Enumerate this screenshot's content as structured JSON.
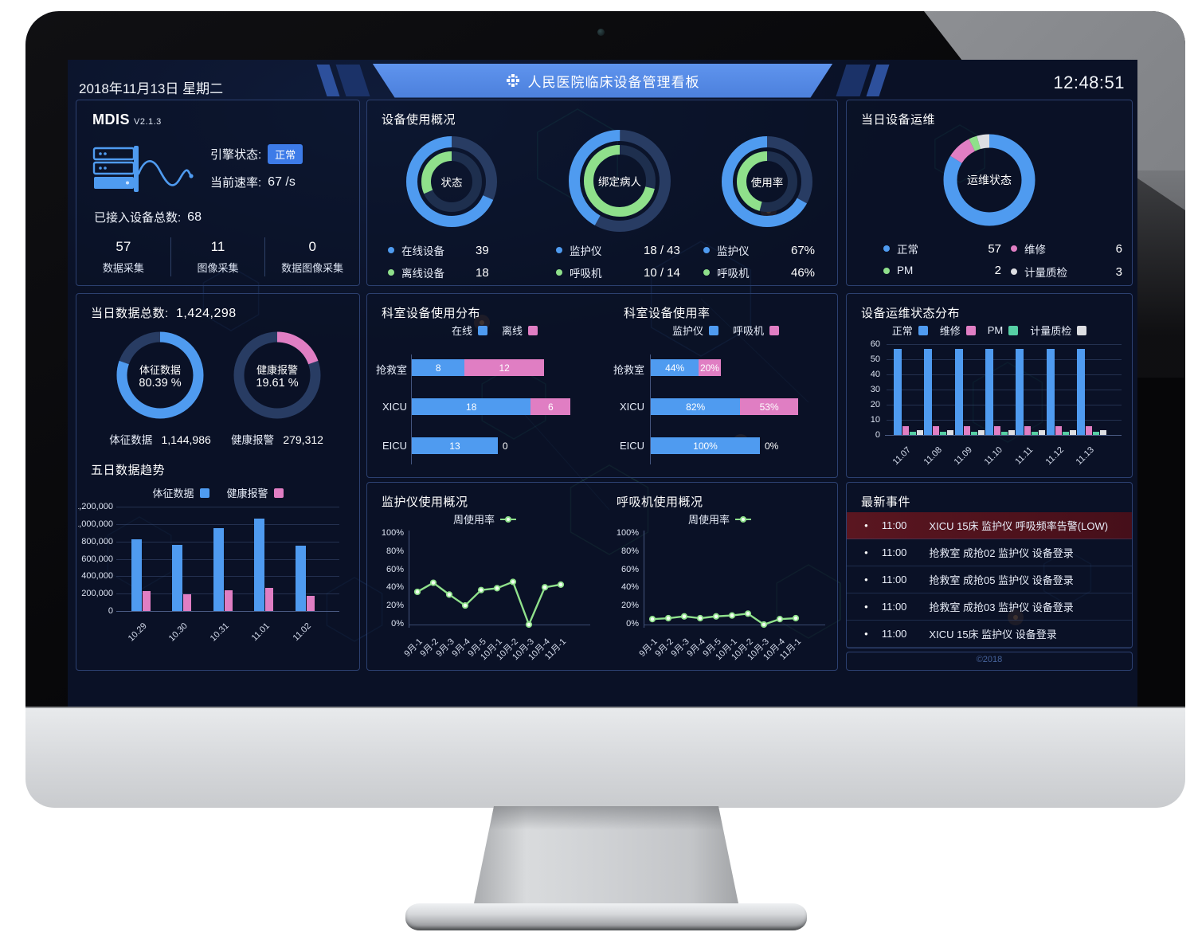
{
  "window": {
    "date": "2018年11月13日 星期二",
    "title": "人民医院临床设备管理看板",
    "time": "12:48:51",
    "copyright": "©2018"
  },
  "colors": {
    "blue": "#4f9bf0",
    "green": "#8fe08b",
    "pink": "#e07ec3",
    "teal": "#56cfa4",
    "gray": "#dddee2",
    "track": "#283c63",
    "track_dark": "#1e2f4e",
    "badge": "#3d7be8",
    "banner": "#568be4",
    "alarm_bg": "#54141f"
  },
  "mdis": {
    "title": "MDIS",
    "version": "V2.1.3",
    "engine_label": "引擎状态:",
    "engine_status": "正常",
    "rate_label": "当前速率:",
    "rate_value": "67 /s",
    "total_label": "已接入设备总数:",
    "total_value": "68",
    "stats": [
      {
        "value": "57",
        "label": "数据采集"
      },
      {
        "value": "11",
        "label": "图像采集"
      },
      {
        "value": "0",
        "label": "数据图像采集"
      }
    ]
  },
  "device_usage": {
    "title": "设备使用概况",
    "donuts": [
      {
        "center": "状态",
        "outer_pct": 68.4,
        "inner_pct": 31.6,
        "legend": [
          {
            "color": "blue",
            "label": "在线设备",
            "value": "39"
          },
          {
            "color": "green",
            "label": "离线设备",
            "value": "18"
          }
        ]
      },
      {
        "center": "绑定病人",
        "outer_pct": 41.9,
        "inner_pct": 71.4,
        "legend": [
          {
            "color": "blue",
            "label": "监护仪",
            "value": "18 / 43"
          },
          {
            "color": "green",
            "label": "呼吸机",
            "value": "10 / 14"
          }
        ]
      },
      {
        "center": "使用率",
        "outer_pct": 67,
        "inner_pct": 46,
        "legend": [
          {
            "color": "blue",
            "label": "监护仪",
            "value": "67%"
          },
          {
            "color": "green",
            "label": "呼吸机",
            "value": "46%"
          }
        ]
      }
    ]
  },
  "daily_ops": {
    "title": "当日设备运维",
    "center": "运维状态",
    "segments": [
      {
        "label": "正常",
        "value": 57,
        "color": "blue"
      },
      {
        "label": "维修",
        "value": 6,
        "color": "pink"
      },
      {
        "label": "PM",
        "value": 2,
        "color": "green"
      },
      {
        "label": "计量质检",
        "value": 3,
        "color": "gray"
      }
    ]
  },
  "daily_data": {
    "total_label": "当日数据总数:",
    "total_value": "1,424,298",
    "trend_title": "五日数据趋势",
    "donuts": [
      {
        "line1": "体征数据",
        "line2": "80.39 %",
        "pct": 80.39,
        "color": "blue",
        "foot_label": "体征数据",
        "foot_value": "1,144,986"
      },
      {
        "line1": "健康报警",
        "line2": "19.61 %",
        "pct": 19.61,
        "color": "pink",
        "foot_label": "健康报警",
        "foot_value": "279,312"
      }
    ]
  },
  "five_day_trend": {
    "type": "bar",
    "categories": [
      "10.29",
      "10.30",
      "10.31",
      "11.01",
      "11.02"
    ],
    "series": [
      {
        "name": "体征数据",
        "color": "blue",
        "values": [
          820000,
          760000,
          955000,
          1065000,
          755000
        ]
      },
      {
        "name": "健康报警",
        "color": "pink",
        "values": [
          230000,
          190000,
          235000,
          265000,
          175000
        ]
      }
    ],
    "yticks": [
      "1,200,000",
      "1,000,000",
      "800,000",
      "600,000",
      "400,000",
      "200,000",
      "0"
    ],
    "ymax": 1200000
  },
  "dept_dist": {
    "title": "科室设备使用分布",
    "type": "stacked-hbar",
    "legend": [
      {
        "name": "在线",
        "color": "blue"
      },
      {
        "name": "离线",
        "color": "pink"
      }
    ],
    "rows": [
      {
        "label": "抢救室",
        "values": [
          8,
          12
        ],
        "labels": [
          "8",
          "12"
        ]
      },
      {
        "label": "XICU",
        "values": [
          18,
          6
        ],
        "labels": [
          "18",
          "6"
        ]
      },
      {
        "label": "EICU",
        "values": [
          13,
          0
        ],
        "labels": [
          "13",
          "0"
        ]
      }
    ]
  },
  "dept_usage": {
    "title": "科室设备使用率",
    "type": "stacked-hbar",
    "legend": [
      {
        "name": "监护仪",
        "color": "blue"
      },
      {
        "name": "呼吸机",
        "color": "pink"
      }
    ],
    "rows": [
      {
        "label": "抢救室",
        "values": [
          44,
          20
        ],
        "labels": [
          "44%",
          "20%"
        ]
      },
      {
        "label": "XICU",
        "values": [
          82,
          53
        ],
        "labels": [
          "82%",
          "53%"
        ]
      },
      {
        "label": "EICU",
        "values": [
          100,
          0
        ],
        "labels": [
          "100%",
          "0%"
        ]
      }
    ]
  },
  "ops_dist": {
    "title": "设备运维状态分布",
    "type": "bar",
    "legend": [
      {
        "name": "正常",
        "color": "blue"
      },
      {
        "name": "维修",
        "color": "pink"
      },
      {
        "name": "PM",
        "color": "teal"
      },
      {
        "name": "计量质检",
        "color": "gray"
      }
    ],
    "categories": [
      "11.07",
      "11.08",
      "11.09",
      "11.10",
      "11.11",
      "11.12",
      "11.13"
    ],
    "series": [
      {
        "name": "正常",
        "color": "blue",
        "values": [
          57,
          57,
          57,
          57,
          57,
          57,
          57
        ]
      },
      {
        "name": "维修",
        "color": "pink",
        "values": [
          6,
          6,
          6,
          6,
          6,
          6,
          6
        ]
      },
      {
        "name": "PM",
        "color": "teal",
        "values": [
          2,
          2,
          2,
          2,
          2,
          2,
          2
        ]
      },
      {
        "name": "计量质检",
        "color": "gray",
        "values": [
          3,
          3,
          3,
          3,
          3,
          3,
          3
        ]
      }
    ],
    "yticks": [
      "60",
      "50",
      "40",
      "30",
      "20",
      "10",
      "0"
    ],
    "ymax": 60
  },
  "monitor_usage": {
    "title": "监护仪使用概况",
    "type": "line",
    "legend_label": "周使用率",
    "x": [
      "9月-1",
      "9月-2",
      "9月-3",
      "9月-4",
      "9月-5",
      "10月-1",
      "10月-2",
      "10月-3",
      "10月-4",
      "11月-1"
    ],
    "values": [
      36,
      46,
      33,
      21,
      38,
      40,
      47,
      0,
      41,
      44
    ],
    "yticks": [
      "100%",
      "80%",
      "60%",
      "40%",
      "20%",
      "0%"
    ],
    "ymax": 100
  },
  "vent_usage": {
    "title": "呼吸机使用概况",
    "type": "line",
    "legend_label": "周使用率",
    "x": [
      "9月-1",
      "9月-2",
      "9月-3",
      "9月-4",
      "9月-5",
      "10月-1",
      "10月-2",
      "10月-3",
      "10月-4",
      "11月-1"
    ],
    "values": [
      6,
      7,
      9,
      7,
      9,
      10,
      12,
      0,
      6,
      7
    ],
    "yticks": [
      "100%",
      "80%",
      "60%",
      "40%",
      "20%",
      "0%"
    ],
    "ymax": 100
  },
  "events": {
    "title": "最新事件",
    "items": [
      {
        "time": "11:00",
        "text": "XICU 15床 监护仪 呼吸频率告警(LOW)",
        "alarm": true
      },
      {
        "time": "11:00",
        "text": "抢救室 成抢02 监护仪 设备登录",
        "alarm": false
      },
      {
        "time": "11:00",
        "text": "抢救室 成抢05 监护仪 设备登录",
        "alarm": false
      },
      {
        "time": "11:00",
        "text": "抢救室 成抢03 监护仪 设备登录",
        "alarm": false
      },
      {
        "time": "11:00",
        "text": "XICU 15床 监护仪 设备登录",
        "alarm": false
      }
    ]
  }
}
